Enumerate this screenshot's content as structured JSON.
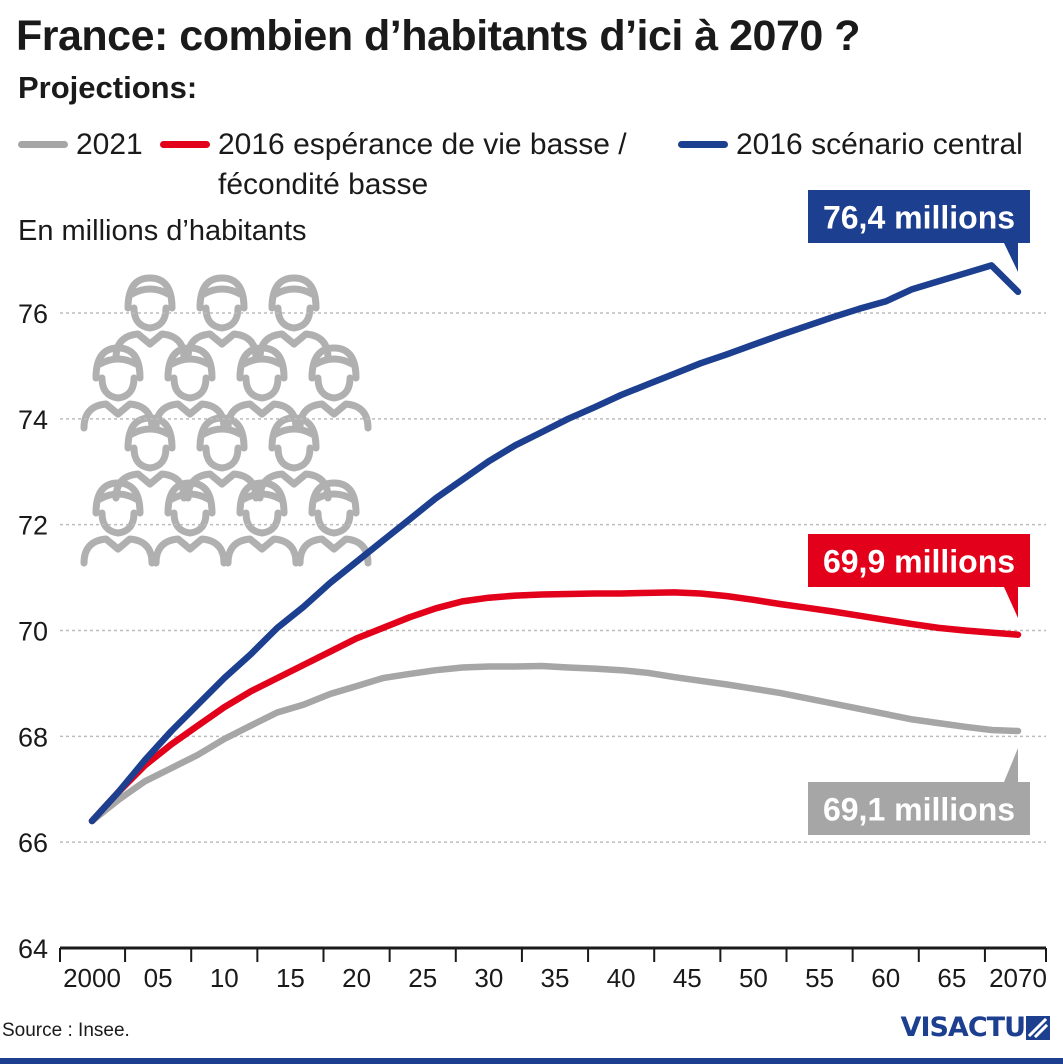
{
  "title": "France: combien d’habitants d’ici à 2070 ?",
  "subtitle": "Projections:",
  "unit_label": "En millions d’habitants",
  "source": "Source : Insee.",
  "logo_text": "VISACTU",
  "legend": [
    {
      "label": "2021",
      "color": "#a6a6a6"
    },
    {
      "label_line1": "2016 espérance de vie basse /",
      "label_line2": "fécondité basse",
      "color": "#e2001a"
    },
    {
      "label": "2016 scénario central",
      "color": "#1d3f8f"
    }
  ],
  "callouts": {
    "blue": "76,4 millions",
    "red": "69,9 millions",
    "gray": "69,1 millions"
  },
  "chart_data": {
    "type": "line",
    "x": [
      2000,
      2002,
      2004,
      2006,
      2008,
      2010,
      2012,
      2014,
      2016,
      2018,
      2020,
      2022,
      2024,
      2026,
      2028,
      2030,
      2032,
      2034,
      2036,
      2038,
      2040,
      2042,
      2044,
      2046,
      2048,
      2050,
      2052,
      2054,
      2056,
      2058,
      2060,
      2062,
      2064,
      2066,
      2068,
      2070
    ],
    "x_tick_values": [
      2000,
      2005,
      2010,
      2015,
      2020,
      2025,
      2030,
      2035,
      2040,
      2045,
      2050,
      2055,
      2060,
      2065,
      2070
    ],
    "x_tick_labels": [
      "2000",
      "05",
      "10",
      "15",
      "20",
      "25",
      "30",
      "35",
      "40",
      "45",
      "50",
      "55",
      "60",
      "65",
      "2070"
    ],
    "ylim": [
      64,
      76.8
    ],
    "y_ticks": [
      64,
      66,
      68,
      70,
      72,
      74,
      76
    ],
    "series": [
      {
        "name": "2021",
        "color": "#a6a6a6",
        "values": [
          66.4,
          66.8,
          67.15,
          67.4,
          67.65,
          67.95,
          68.2,
          68.45,
          68.6,
          68.8,
          68.95,
          69.1,
          69.18,
          69.25,
          69.3,
          69.32,
          69.32,
          69.33,
          69.3,
          69.28,
          69.25,
          69.2,
          69.12,
          69.05,
          68.98,
          68.9,
          68.82,
          68.72,
          68.62,
          68.52,
          68.42,
          68.32,
          68.25,
          68.18,
          68.12,
          68.1
        ]
      },
      {
        "name": "2016 espérance de vie basse / fécondité basse",
        "color": "#e2001a",
        "values": [
          66.4,
          66.95,
          67.45,
          67.85,
          68.2,
          68.55,
          68.85,
          69.1,
          69.35,
          69.6,
          69.85,
          70.05,
          70.25,
          70.42,
          70.55,
          70.62,
          70.66,
          70.68,
          70.69,
          70.7,
          70.7,
          70.71,
          70.72,
          70.7,
          70.65,
          70.58,
          70.5,
          70.43,
          70.36,
          70.28,
          70.2,
          70.12,
          70.05,
          70.0,
          69.96,
          69.92
        ]
      },
      {
        "name": "2016 scénario central",
        "color": "#1d3f8f",
        "values": [
          66.4,
          66.95,
          67.55,
          68.1,
          68.6,
          69.1,
          69.55,
          70.05,
          70.45,
          70.9,
          71.3,
          71.7,
          72.1,
          72.5,
          72.85,
          73.2,
          73.5,
          73.75,
          74.0,
          74.22,
          74.45,
          74.65,
          74.85,
          75.05,
          75.22,
          75.4,
          75.58,
          75.75,
          75.92,
          76.08,
          76.22,
          76.45,
          76.6,
          76.75,
          76.9,
          76.4
        ]
      }
    ]
  }
}
